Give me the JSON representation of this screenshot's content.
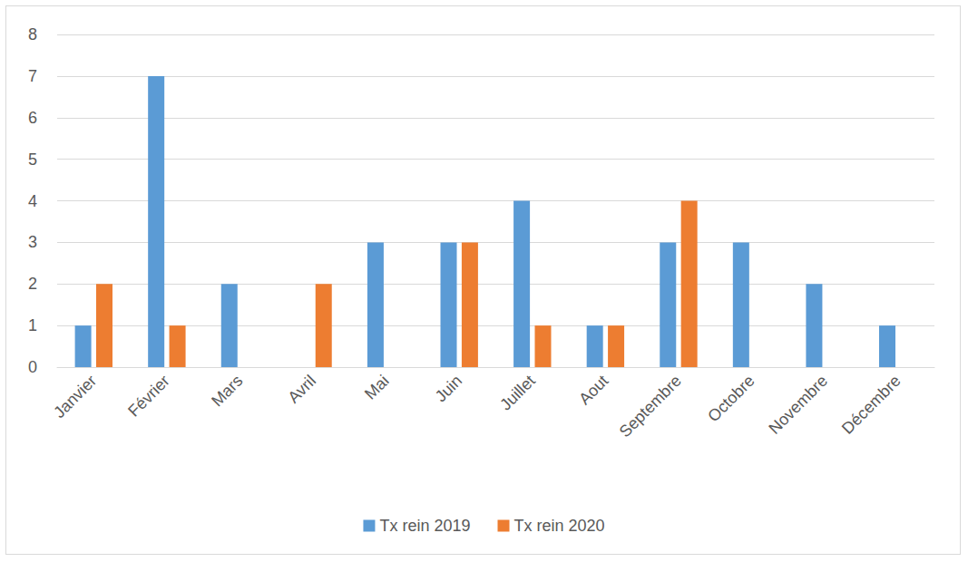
{
  "chart_data": {
    "type": "bar",
    "categories": [
      "Janvier",
      "Février",
      "Mars",
      "Avril",
      "Mai",
      "Juin",
      "Juillet",
      "Aout",
      "Septembre",
      "Octobre",
      "Novembre",
      "Décembre"
    ],
    "series": [
      {
        "name": "Tx rein 2019",
        "color": "#5b9bd5",
        "values": [
          1,
          7,
          2,
          0,
          3,
          3,
          4,
          1,
          3,
          3,
          2,
          1
        ]
      },
      {
        "name": "Tx rein 2020",
        "color": "#ed7d31",
        "values": [
          2,
          1,
          0,
          2,
          0,
          3,
          1,
          1,
          4,
          null,
          null,
          null
        ]
      }
    ],
    "ylim": [
      0,
      8
    ],
    "yticks": [
      0,
      1,
      2,
      3,
      4,
      5,
      6,
      7,
      8
    ],
    "grid": true,
    "legend": "bottom"
  }
}
